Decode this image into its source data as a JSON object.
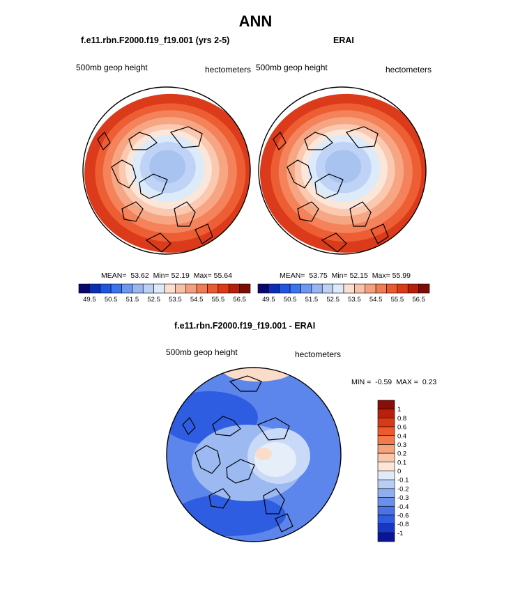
{
  "figure": {
    "title": "ANN"
  },
  "panels": [
    {
      "title": "f.e11.rbn.F2000.f19_f19.001 (yrs 2-5)",
      "left_label": "500mb geop height",
      "right_label": "hectometers",
      "stats": {
        "mean_label": "MEAN=",
        "mean": "53.62",
        "min_label": "Min=",
        "min": "52.19",
        "max_label": "Max=",
        "max": "55.64"
      }
    },
    {
      "title": "ERAI",
      "left_label": "500mb geop height",
      "right_label": "hectometers",
      "stats": {
        "mean_label": "MEAN=",
        "mean": "53.75",
        "min_label": "Min=",
        "min": "52.15",
        "max_label": "Max=",
        "max": "55.99"
      }
    }
  ],
  "horizontal_colorbar": {
    "colors": [
      "#08086e",
      "#0a2fb4",
      "#1f55df",
      "#3a74ee",
      "#6e98ef",
      "#9ab5f0",
      "#bdd1f4",
      "#ddeafa",
      "#fbe0d2",
      "#f7c2a8",
      "#f4a07e",
      "#f07c54",
      "#ea5a30",
      "#dc3a14",
      "#b81f08",
      "#7e0c05"
    ],
    "tick_labels": [
      "49.5",
      "50.5",
      "51.5",
      "52.5",
      "53.5",
      "54.5",
      "55.5",
      "56.5"
    ]
  },
  "difference_panel": {
    "title": "f.e11.rbn.F2000.f19_f19.001 - ERAI",
    "left_label": "500mb geop height",
    "right_label": "hectometers",
    "minmax": {
      "min_label": "MIN =",
      "min": "-0.59",
      "max_label": "MAX =",
      "max": "0.23"
    }
  },
  "vertical_colorbar": {
    "colors": [
      "#8a0d08",
      "#b8200c",
      "#d83a18",
      "#ee5a2c",
      "#f47a4c",
      "#f6a27a",
      "#f9c7aa",
      "#fce6d8",
      "#e0ebf8",
      "#b8cdf4",
      "#8eaef0",
      "#6a90ec",
      "#4a74e6",
      "#2f5ce0",
      "#1838c4",
      "#0a1596"
    ],
    "tick_labels": [
      "1",
      "0.8",
      "0.6",
      "0.4",
      "0.3",
      "0.2",
      "0.1",
      "0",
      "-0.1",
      "-0.2",
      "-0.3",
      "-0.4",
      "-0.6",
      "-0.8",
      "-1"
    ]
  },
  "map_colors": {
    "mean_bands": [
      "#db3b1a",
      "#ee5e34",
      "#f4825a",
      "#f7a683",
      "#fac9b0",
      "#fbe6da",
      "#ddeaf9",
      "#bed3f5",
      "#a9c3f1"
    ],
    "diff_field": {
      "base": "#5d86ec",
      "dark": "#2f5de1",
      "light": "#9cb9f1",
      "paler": "#c8daf7",
      "near_zero": "#e6eef9",
      "positive": "#fbdcc8"
    },
    "coastline": "#000000"
  }
}
